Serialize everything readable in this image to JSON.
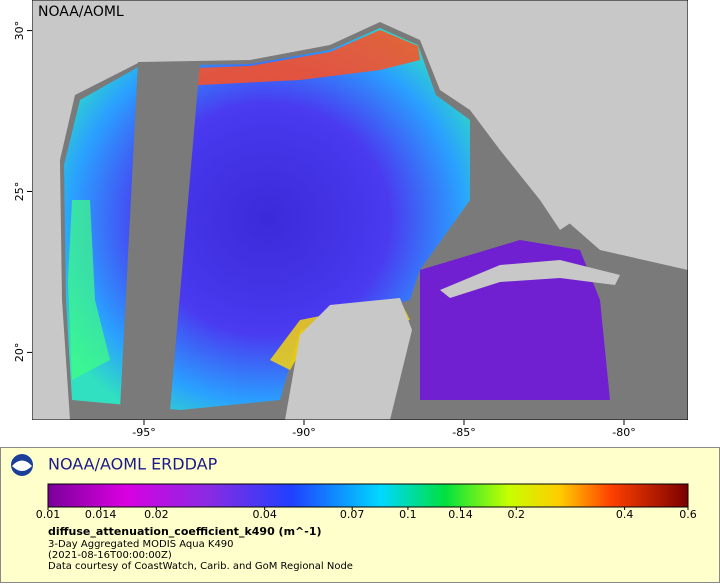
{
  "map": {
    "watermark": "NOAA/AOML",
    "xlim": [
      -98.5,
      -78.0
    ],
    "ylim": [
      17.9,
      30.95
    ],
    "xticks": [
      {
        "value": -95,
        "label": "-95°"
      },
      {
        "value": -90,
        "label": "-90°"
      },
      {
        "value": -85,
        "label": "-85°"
      },
      {
        "value": -80,
        "label": "-80°"
      }
    ],
    "yticks": [
      {
        "value": 20,
        "label": "20°"
      },
      {
        "value": 25,
        "label": "25°"
      },
      {
        "value": 30,
        "label": "30°"
      }
    ]
  },
  "legend": {
    "title": "NOAA/AOML ERDDAP",
    "colorbar": {
      "range": [
        0.01,
        0.6
      ],
      "log": true,
      "ticks": [
        0.01,
        0.014,
        0.02,
        0.04,
        0.07,
        0.1,
        0.14,
        0.2,
        0.4,
        0.6
      ]
    },
    "variable": "diffuse_attenuation_coefficient_k490 (m^-1)",
    "lines": [
      "3-Day Aggregated MODIS Aqua K490",
      "(2021-08-16T00:00:00Z)",
      "Data courtesy of CoastWatch, Carib. and GoM Regional Node"
    ]
  }
}
